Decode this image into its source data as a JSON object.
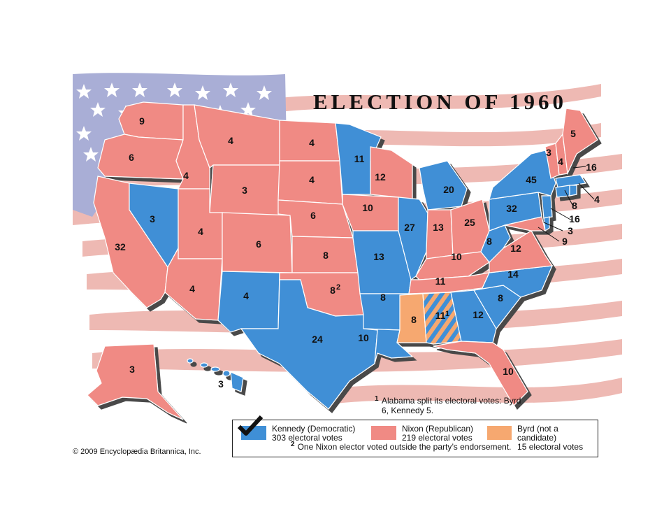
{
  "title": "ELECTION OF 1960",
  "colors": {
    "kennedy": "#3f8fd6",
    "nixon": "#f08a84",
    "byrd": "#f6a870",
    "flag_red": "#e8b3ad",
    "flag_blue": "#a9aed6",
    "border": "#ffffff",
    "shadow": "#555555"
  },
  "states": [
    {
      "label": "9",
      "party": "nixon"
    },
    {
      "label": "6",
      "party": "nixon"
    },
    {
      "label": "32",
      "party": "nixon"
    },
    {
      "label": "4",
      "party": "nixon"
    },
    {
      "label": "3",
      "party": "kennedy"
    },
    {
      "label": "4",
      "party": "nixon"
    },
    {
      "label": "4",
      "party": "nixon"
    },
    {
      "label": "4",
      "party": "nixon"
    },
    {
      "label": "3",
      "party": "nixon"
    },
    {
      "label": "6",
      "party": "nixon"
    },
    {
      "label": "4",
      "party": "kennedy"
    },
    {
      "label": "4",
      "party": "nixon"
    },
    {
      "label": "4",
      "party": "nixon"
    },
    {
      "label": "6",
      "party": "nixon"
    },
    {
      "label": "8",
      "party": "nixon"
    },
    {
      "label": "8",
      "party": "nixon"
    },
    {
      "label": "24",
      "party": "kennedy"
    },
    {
      "label": "11",
      "party": "kennedy"
    },
    {
      "label": "10",
      "party": "nixon"
    },
    {
      "label": "13",
      "party": "kennedy"
    },
    {
      "label": "8",
      "party": "kennedy"
    },
    {
      "label": "10",
      "party": "kennedy"
    },
    {
      "label": "12",
      "party": "nixon"
    },
    {
      "label": "27",
      "party": "kennedy"
    },
    {
      "label": "20",
      "party": "kennedy"
    },
    {
      "label": "13",
      "party": "nixon"
    },
    {
      "label": "25",
      "party": "nixon"
    },
    {
      "label": "10",
      "party": "nixon"
    },
    {
      "label": "11",
      "party": "nixon"
    },
    {
      "label": "8",
      "party": "byrd"
    },
    {
      "label": "11",
      "party": "split"
    },
    {
      "label": "12",
      "party": "kennedy"
    },
    {
      "label": "10",
      "party": "nixon"
    },
    {
      "label": "8",
      "party": "kennedy"
    },
    {
      "label": "14",
      "party": "kennedy"
    },
    {
      "label": "12",
      "party": "nixon"
    },
    {
      "label": "8",
      "party": "kennedy"
    },
    {
      "label": "32",
      "party": "kennedy"
    },
    {
      "label": "45",
      "party": "kennedy"
    },
    {
      "label": "3",
      "party": "nixon"
    },
    {
      "label": "4",
      "party": "nixon"
    },
    {
      "label": "5",
      "party": "nixon"
    },
    {
      "label": "16",
      "party": "kennedy"
    },
    {
      "label": "4",
      "party": "kennedy"
    },
    {
      "label": "8",
      "party": "kennedy"
    },
    {
      "label": "16",
      "party": "kennedy"
    },
    {
      "label": "3",
      "party": "kennedy"
    },
    {
      "label": "9",
      "party": "nixon"
    },
    {
      "label": "3",
      "party": "nixon"
    },
    {
      "label": "3",
      "party": "kennedy"
    }
  ],
  "superscripts": {
    "oklahoma": "2",
    "alabama": "1"
  },
  "footnote1": {
    "mark": "1",
    "text": "Alabama split its electoral votes: Byrd 6, Kennedy 5."
  },
  "footnote2": {
    "mark": "2",
    "text": "One Nixon elector voted outside the party’s endorsement."
  },
  "legend": [
    {
      "name": "Kennedy (Democratic)",
      "votes": "303 electoral votes",
      "party": "kennedy"
    },
    {
      "name": "Nixon (Republican)",
      "votes": "219 electoral votes",
      "party": "nixon"
    },
    {
      "name": "Byrd (not a candidate)",
      "votes": "15 electoral votes",
      "party": "byrd"
    }
  ],
  "copyright": "© 2009 Encyclopædia Britannica, Inc."
}
